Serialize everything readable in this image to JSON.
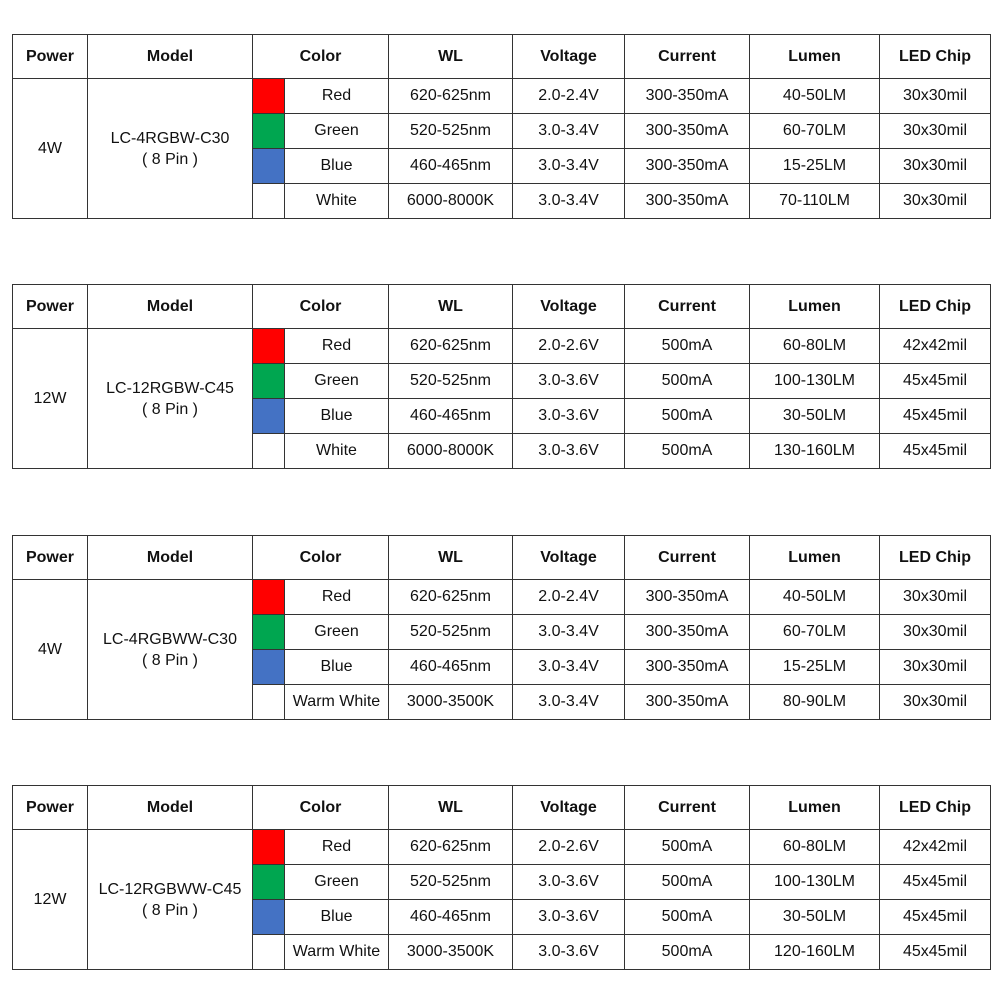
{
  "headers": [
    "Power",
    "Model",
    "Color",
    "WL",
    "Voltage",
    "Current",
    "Lumen",
    "LED Chip"
  ],
  "tables": [
    {
      "power": "4W",
      "model": "LC-4RGBW-C30",
      "pin": "( 8 Pin )",
      "rows": [
        {
          "swatch": "#ff0000",
          "color": "Red",
          "wl": "620-625nm",
          "voltage": "2.0-2.4V",
          "current": "300-350mA",
          "lumen": "40-50LM",
          "chip": "30x30mil"
        },
        {
          "swatch": "#00a650",
          "color": "Green",
          "wl": "520-525nm",
          "voltage": "3.0-3.4V",
          "current": "300-350mA",
          "lumen": "60-70LM",
          "chip": "30x30mil"
        },
        {
          "swatch": "#4472c4",
          "color": "Blue",
          "wl": "460-465nm",
          "voltage": "3.0-3.4V",
          "current": "300-350mA",
          "lumen": "15-25LM",
          "chip": "30x30mil"
        },
        {
          "swatch": "#ffffff",
          "color": "White",
          "wl": "6000-8000K",
          "voltage": "3.0-3.4V",
          "current": "300-350mA",
          "lumen": "70-110LM",
          "chip": "30x30mil"
        }
      ]
    },
    {
      "power": "12W",
      "model": "LC-12RGBW-C45",
      "pin": "( 8 Pin )",
      "rows": [
        {
          "swatch": "#ff0000",
          "color": "Red",
          "wl": "620-625nm",
          "voltage": "2.0-2.6V",
          "current": "500mA",
          "lumen": "60-80LM",
          "chip": "42x42mil"
        },
        {
          "swatch": "#00a650",
          "color": "Green",
          "wl": "520-525nm",
          "voltage": "3.0-3.6V",
          "current": "500mA",
          "lumen": "100-130LM",
          "chip": "45x45mil"
        },
        {
          "swatch": "#4472c4",
          "color": "Blue",
          "wl": "460-465nm",
          "voltage": "3.0-3.6V",
          "current": "500mA",
          "lumen": "30-50LM",
          "chip": "45x45mil"
        },
        {
          "swatch": "#ffffff",
          "color": "White",
          "wl": "6000-8000K",
          "voltage": "3.0-3.6V",
          "current": "500mA",
          "lumen": "130-160LM",
          "chip": "45x45mil"
        }
      ]
    },
    {
      "power": "4W",
      "model": "LC-4RGBWW-C30",
      "pin": "( 8 Pin )",
      "rows": [
        {
          "swatch": "#ff0000",
          "color": "Red",
          "wl": "620-625nm",
          "voltage": "2.0-2.4V",
          "current": "300-350mA",
          "lumen": "40-50LM",
          "chip": "30x30mil"
        },
        {
          "swatch": "#00a650",
          "color": "Green",
          "wl": "520-525nm",
          "voltage": "3.0-3.4V",
          "current": "300-350mA",
          "lumen": "60-70LM",
          "chip": "30x30mil"
        },
        {
          "swatch": "#4472c4",
          "color": "Blue",
          "wl": "460-465nm",
          "voltage": "3.0-3.4V",
          "current": "300-350mA",
          "lumen": "15-25LM",
          "chip": "30x30mil"
        },
        {
          "swatch": "#ffffff",
          "color": "Warm White",
          "wl": "3000-3500K",
          "voltage": "3.0-3.4V",
          "current": "300-350mA",
          "lumen": "80-90LM",
          "chip": "30x30mil"
        }
      ]
    },
    {
      "power": "12W",
      "model": "LC-12RGBWW-C45",
      "pin": "( 8 Pin )",
      "rows": [
        {
          "swatch": "#ff0000",
          "color": "Red",
          "wl": "620-625nm",
          "voltage": "2.0-2.6V",
          "current": "500mA",
          "lumen": "60-80LM",
          "chip": "42x42mil"
        },
        {
          "swatch": "#00a650",
          "color": "Green",
          "wl": "520-525nm",
          "voltage": "3.0-3.6V",
          "current": "500mA",
          "lumen": "100-130LM",
          "chip": "45x45mil"
        },
        {
          "swatch": "#4472c4",
          "color": "Blue",
          "wl": "460-465nm",
          "voltage": "3.0-3.6V",
          "current": "500mA",
          "lumen": "30-50LM",
          "chip": "45x45mil"
        },
        {
          "swatch": "#ffffff",
          "color": "Warm White",
          "wl": "3000-3500K",
          "voltage": "3.0-3.6V",
          "current": "500mA",
          "lumen": "120-160LM",
          "chip": "45x45mil"
        }
      ]
    }
  ]
}
